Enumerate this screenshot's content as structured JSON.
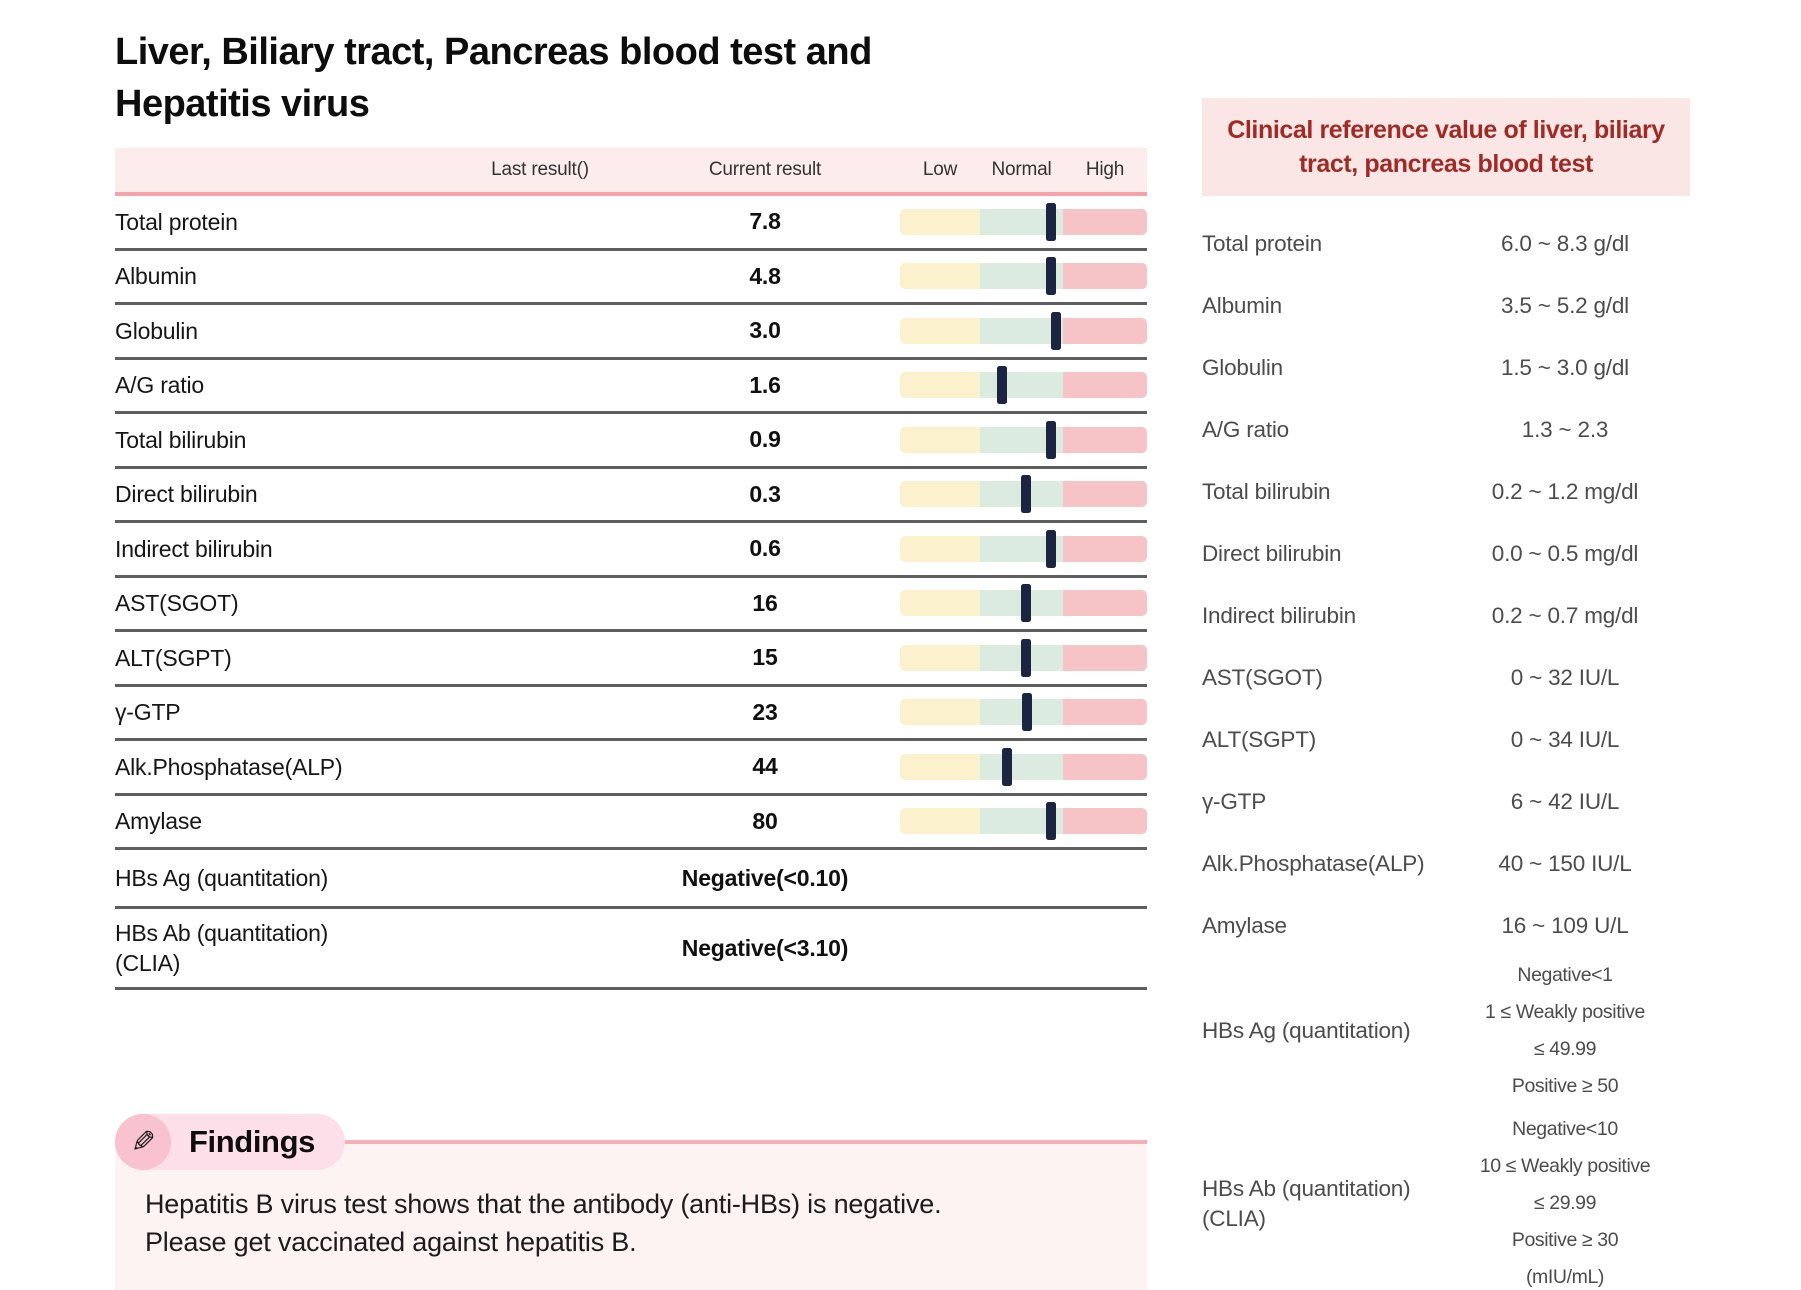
{
  "page": {
    "title_lines": [
      "Liver, Biliary tract, Pancreas blood test and",
      "Hepatitis virus"
    ]
  },
  "results_table": {
    "columns": {
      "last": "Last result()",
      "current": "Current result",
      "low": "Low",
      "normal": "Normal",
      "high": "High"
    },
    "rows": [
      {
        "name": "Total protein",
        "last": "",
        "current": "7.8",
        "marker": 0.86
      },
      {
        "name": "Albumin",
        "last": "",
        "current": "4.8",
        "marker": 0.86
      },
      {
        "name": "Globulin",
        "last": "",
        "current": "3.0",
        "marker": 0.91
      },
      {
        "name": "A/G ratio",
        "last": "",
        "current": "1.6",
        "marker": 0.27
      },
      {
        "name": "Total bilirubin",
        "last": "",
        "current": "0.9",
        "marker": 0.86
      },
      {
        "name": "Direct bilirubin",
        "last": "",
        "current": "0.3",
        "marker": 0.55
      },
      {
        "name": "Indirect bilirubin",
        "last": "",
        "current": "0.6",
        "marker": 0.86
      },
      {
        "name": "AST(SGOT)",
        "last": "",
        "current": "16",
        "marker": 0.55
      },
      {
        "name": "ALT(SGPT)",
        "last": "",
        "current": "15",
        "marker": 0.55
      },
      {
        "name": "γ-GTP",
        "last": "",
        "current": "23",
        "marker": 0.57
      },
      {
        "name": "Alk.Phosphatase(ALP)",
        "last": "",
        "current": "44",
        "marker": 0.32
      },
      {
        "name": "Amylase",
        "last": "",
        "current": "80",
        "marker": 0.85
      },
      {
        "name": "HBs Ag (quantitation)",
        "last": "",
        "current": "Negative(<0.10)",
        "marker": null
      },
      {
        "name_lines": [
          "HBs Ab (quantitation)",
          "(CLIA)"
        ],
        "last": "",
        "current": "Negative(<3.10)",
        "marker": null
      }
    ]
  },
  "reference_panel": {
    "title": "Clinical reference value of liver, biliary tract, pancreas blood test",
    "rows": [
      {
        "name": "Total protein",
        "value": "6.0 ~ 8.3 g/dl"
      },
      {
        "name": "Albumin",
        "value": "3.5 ~ 5.2 g/dl"
      },
      {
        "name": "Globulin",
        "value": "1.5 ~ 3.0 g/dl"
      },
      {
        "name": "A/G ratio",
        "value": "1.3 ~ 2.3"
      },
      {
        "name": "Total bilirubin",
        "value": "0.2 ~ 1.2 mg/dl"
      },
      {
        "name": "Direct bilirubin",
        "value": "0.0 ~ 0.5 mg/dl"
      },
      {
        "name": "Indirect bilirubin",
        "value": "0.2 ~ 0.7 mg/dl"
      },
      {
        "name": "AST(SGOT)",
        "value": "0 ~ 32 IU/L"
      },
      {
        "name": "ALT(SGPT)",
        "value": "0 ~ 34 IU/L"
      },
      {
        "name": "γ-GTP",
        "value": "6 ~ 42 IU/L"
      },
      {
        "name": "Alk.Phosphatase(ALP)",
        "value": "40 ~ 150 IU/L"
      },
      {
        "name": "Amylase",
        "value": "16 ~ 109 U/L"
      }
    ],
    "multi_rows": [
      {
        "name": "HBs Ag (quantitation)",
        "value_lines": [
          "Negative<1",
          "1 ≤ Weakly positive",
          "≤ 49.99",
          "Positive ≥ 50"
        ]
      },
      {
        "name_lines": [
          "HBs Ab (quantitation)",
          "(CLIA)"
        ],
        "value_lines": [
          "Negative<10",
          "10 ≤ Weakly positive",
          "≤ 29.99",
          "Positive ≥ 30",
          "(mIU/mL)"
        ]
      }
    ]
  },
  "findings": {
    "icon": "pencil-icon",
    "icon_glyph": "✎",
    "title": "Findings",
    "text": "Hepatitis B virus test shows that the antibody (anti-HBs) is negative. Please get vaccinated against hepatitis B."
  },
  "colors": {
    "header_bg": "#fdecec",
    "header_underline": "#f5a2aa",
    "bar_low_yellow": "#fbf1cd",
    "bar_normal_green": "#dcebdf",
    "bar_high_pink": "#f6c3c6",
    "marker_navy": "#1b2542",
    "row_separator": "#5e5e5e",
    "ref_header_bg": "#fbe6e6",
    "ref_title_red": "#9e2b26",
    "findings_box_bg": "#fdf3f3",
    "findings_pill_bg": "#fcdfe8",
    "findings_circle_bg": "#f8c2cf",
    "findings_line_pink": "#f6aeb9"
  }
}
